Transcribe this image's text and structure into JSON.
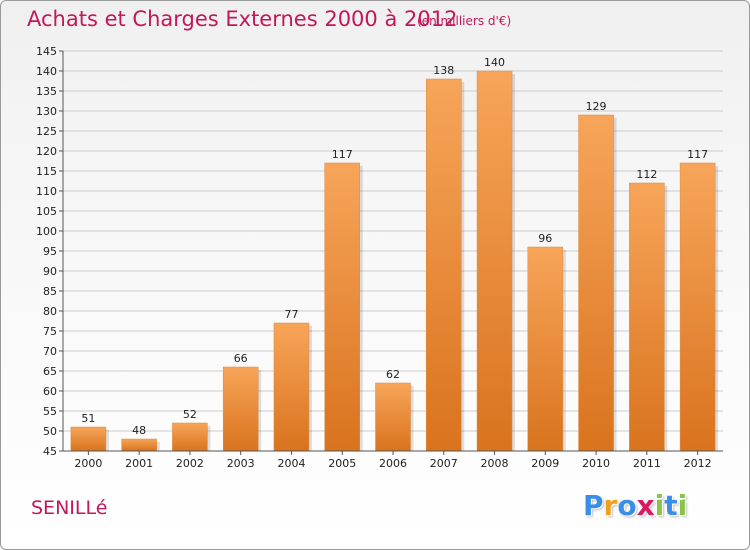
{
  "title": "Achats et Charges Externes 2000 à 2012",
  "unit_note": "(en milliers d'€)",
  "commune": "SENILLé",
  "logo": {
    "letters": [
      "P",
      "r",
      "o",
      "x",
      "i",
      "t",
      "i"
    ],
    "colors": [
      "#3a8ee6",
      "#f0a020",
      "#3a8ee6",
      "#d81b60",
      "#8bc34a",
      "#3a8ee6",
      "#8bc34a"
    ]
  },
  "colors": {
    "title": "#c2185b",
    "bar_light": "#f7a55a",
    "bar_dark": "#d9731e",
    "grid": "#cccccc"
  },
  "chart_data": {
    "type": "bar",
    "categories": [
      "2000",
      "2001",
      "2002",
      "2003",
      "2004",
      "2005",
      "2006",
      "2007",
      "2008",
      "2009",
      "2010",
      "2011",
      "2012"
    ],
    "values": [
      51,
      48,
      52,
      66,
      77,
      117,
      62,
      138,
      140,
      96,
      129,
      112,
      117
    ],
    "ylim": [
      45,
      145
    ],
    "yticks": [
      45,
      50,
      55,
      60,
      65,
      70,
      75,
      80,
      85,
      90,
      95,
      100,
      105,
      110,
      115,
      120,
      125,
      130,
      135,
      140,
      145
    ],
    "grid": true,
    "data_labels": true
  }
}
